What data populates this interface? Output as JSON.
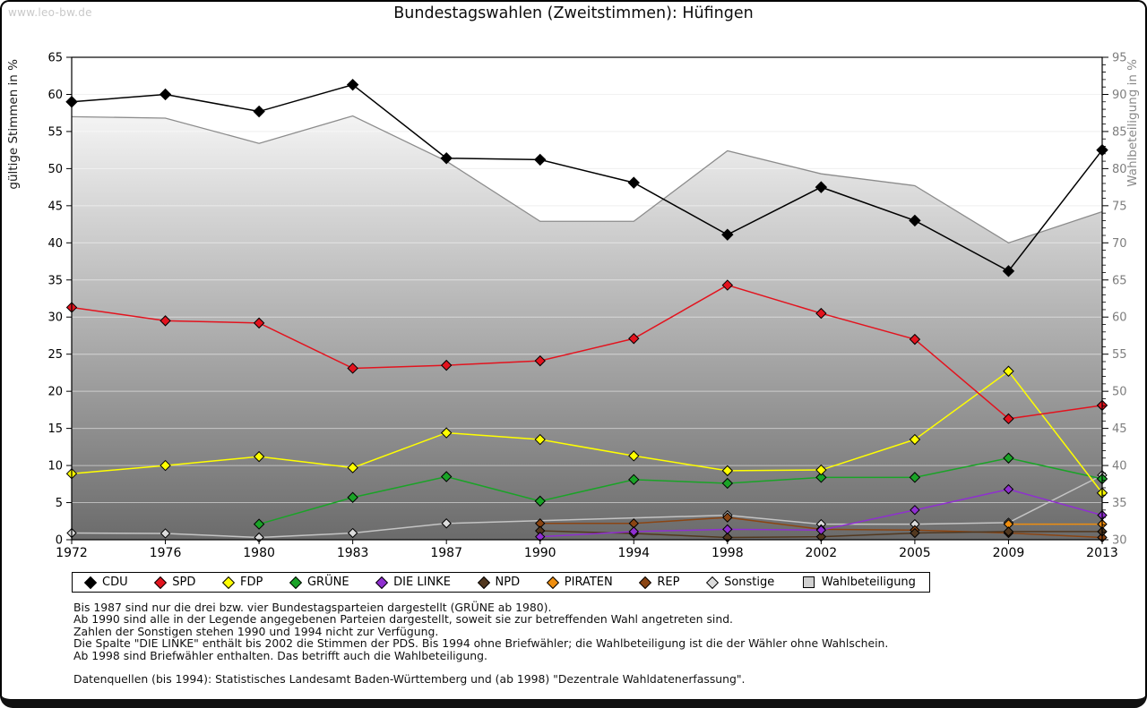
{
  "watermark": "www.leo-bw.de",
  "title": "Bundestagswahlen (Zweitstimmen): Hüfingen",
  "footnotes": [
    "Bis 1987 sind nur die drei bzw. vier Bundestagsparteien dargestellt (GRÜNE ab 1980).",
    "Ab 1990 sind alle in der Legende angegebenen Parteien dargestellt, soweit sie zur betreffenden Wahl angetreten sind.",
    "Zahlen der Sonstigen stehen 1990 und 1994 nicht zur Verfügung.",
    "Die Spalte \"DIE LINKE\" enthält bis 2002 die Stimmen der PDS. Bis 1994 ohne Briefwähler; die Wahlbeteiligung ist die der Wähler ohne Wahlschein.",
    "Ab 1998 sind Briefwähler enthalten. Das betrifft auch die Wahlbeteiligung.",
    "",
    "Datenquellen (bis 1994): Statistisches Landesamt Baden-Württemberg und (ab 1998) \"Dezentrale Wahldatenerfassung\"."
  ],
  "chart_data": {
    "type": "line",
    "title": "Bundestagswahlen (Zweitstimmen): Hüfingen",
    "x_categories": [
      "1972",
      "1976",
      "1980",
      "1983",
      "1987",
      "1990",
      "1994",
      "1998",
      "2002",
      "2005",
      "2009",
      "2013"
    ],
    "y_left": {
      "label": "gültige Stimmen in %",
      "min": 0,
      "max": 65,
      "step": 5,
      "ticks": [
        0,
        5,
        10,
        15,
        20,
        25,
        30,
        35,
        40,
        45,
        50,
        55,
        60,
        65
      ],
      "tick_color": "#000000"
    },
    "y_right": {
      "label": "Wahlbeteiligung in %",
      "min": 30,
      "max": 95,
      "step": 5,
      "minor_step": 1,
      "ticks": [
        30,
        35,
        40,
        45,
        50,
        55,
        60,
        65,
        70,
        75,
        80,
        85,
        90,
        95
      ],
      "tick_color": "#7d7d7d"
    },
    "grid": true,
    "legend_position": "bottom",
    "series": [
      {
        "name": "CDU",
        "color": "#000000",
        "axis": "left",
        "marker": "diamond",
        "marker_size": 6,
        "values": [
          59.0,
          60.0,
          57.7,
          61.3,
          51.4,
          51.2,
          48.1,
          41.1,
          47.5,
          43.0,
          36.2,
          52.5
        ]
      },
      {
        "name": "SPD",
        "color": "#e3131e",
        "axis": "left",
        "marker": "diamond",
        "marker_size": 5.5,
        "values": [
          31.3,
          29.5,
          29.2,
          23.1,
          23.5,
          24.1,
          27.1,
          34.3,
          30.5,
          27.0,
          16.3,
          18.1
        ]
      },
      {
        "name": "FDP",
        "color": "#ffff00",
        "axis": "left",
        "marker": "diamond",
        "marker_size": 5.5,
        "values": [
          8.9,
          10.0,
          11.2,
          9.7,
          14.4,
          13.5,
          11.3,
          9.3,
          9.4,
          13.5,
          22.7,
          6.3
        ]
      },
      {
        "name": "GRÜNE",
        "color": "#1aa327",
        "axis": "left",
        "marker": "diamond",
        "marker_size": 5.5,
        "values": [
          null,
          null,
          2.1,
          5.7,
          8.5,
          5.2,
          8.1,
          7.6,
          8.4,
          8.4,
          11.0,
          8.2
        ]
      },
      {
        "name": "DIE LINKE",
        "color": "#8f2fd0",
        "axis": "left",
        "marker": "diamond",
        "marker_size": 5,
        "values": [
          null,
          null,
          null,
          null,
          null,
          0.4,
          1.1,
          1.4,
          1.3,
          4.0,
          6.8,
          3.3
        ]
      },
      {
        "name": "NPD",
        "color": "#52381f",
        "axis": "left",
        "marker": "diamond",
        "marker_size": 5,
        "values": [
          null,
          null,
          null,
          null,
          null,
          1.2,
          0.85,
          0.3,
          0.4,
          0.9,
          1.1,
          1.1
        ]
      },
      {
        "name": "PIRATEN",
        "color": "#ef8e0f",
        "axis": "left",
        "marker": "diamond",
        "marker_size": 5,
        "values": [
          null,
          null,
          null,
          null,
          null,
          null,
          null,
          null,
          null,
          null,
          2.1,
          2.1
        ]
      },
      {
        "name": "REP",
        "color": "#8b4513",
        "axis": "left",
        "marker": "diamond",
        "marker_size": 5,
        "values": [
          null,
          null,
          null,
          null,
          null,
          2.2,
          2.2,
          3.0,
          1.4,
          1.3,
          0.9,
          0.3
        ]
      },
      {
        "name": "Sonstige",
        "color": "#c4c4c4",
        "marker_fill": "#dcdcdc",
        "axis": "left",
        "marker": "diamond",
        "marker_size": 5,
        "connect_gaps": true,
        "values": [
          0.9,
          0.85,
          0.3,
          0.9,
          2.2,
          null,
          null,
          3.3,
          2.1,
          2.1,
          2.3,
          8.7
        ]
      },
      {
        "name": "Wahlbeteiligung",
        "color": "#8c8c8c",
        "axis": "right",
        "marker": "square",
        "type": "area",
        "fill_gradient": [
          "#fbfbfb",
          "#6b6b6b"
        ],
        "legend_fill": "#d0d0d0",
        "values": [
          87.0,
          86.8,
          83.4,
          87.1,
          81.0,
          72.9,
          72.9,
          82.4,
          79.3,
          77.7,
          70.0,
          74.2
        ]
      }
    ]
  }
}
